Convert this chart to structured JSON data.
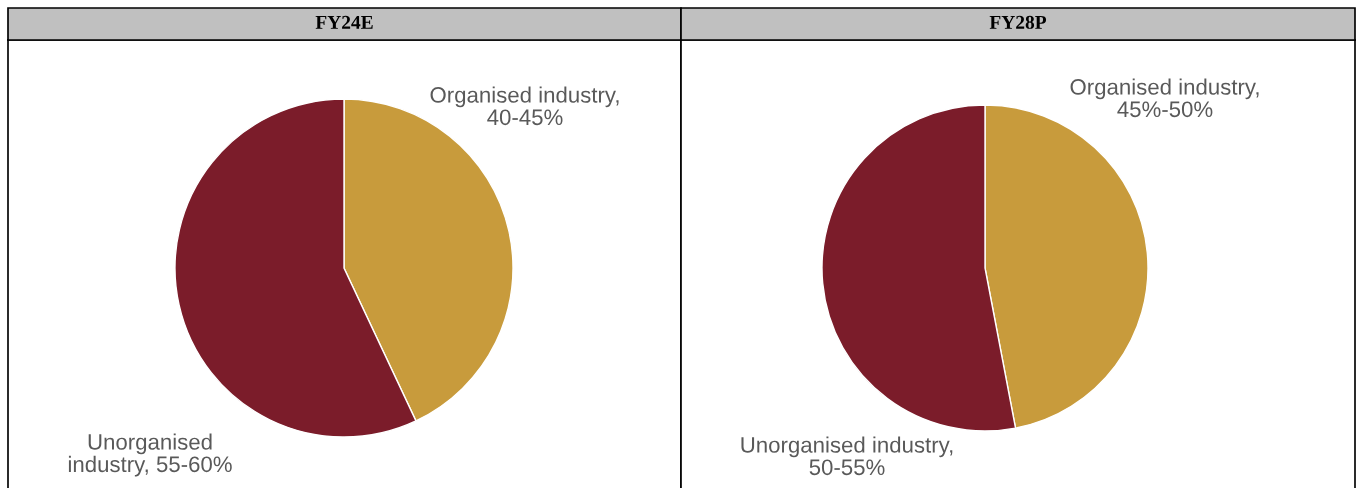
{
  "chart_data": [
    {
      "type": "pie",
      "title": "FY24E",
      "categories": [
        "Organised industry, 40-45%",
        "Unorganised industry, 55-60%"
      ],
      "values": [
        43,
        57
      ],
      "colors": [
        "#c89b3c",
        "#7b1c2a"
      ]
    },
    {
      "type": "pie",
      "title": "FY28P",
      "categories": [
        "Organised industry, 45%-50%",
        "Unorganised industry, 50-55%"
      ],
      "values": [
        47,
        53
      ],
      "colors": [
        "#c89b3c",
        "#7b1c2a"
      ]
    }
  ]
}
